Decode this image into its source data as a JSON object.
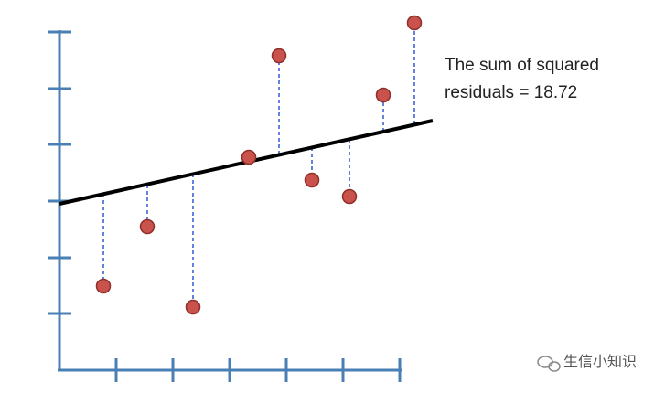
{
  "annotation": {
    "line1": "The sum of squared",
    "line2": "residuals = 18.72"
  },
  "watermark": "生信小知识"
}
